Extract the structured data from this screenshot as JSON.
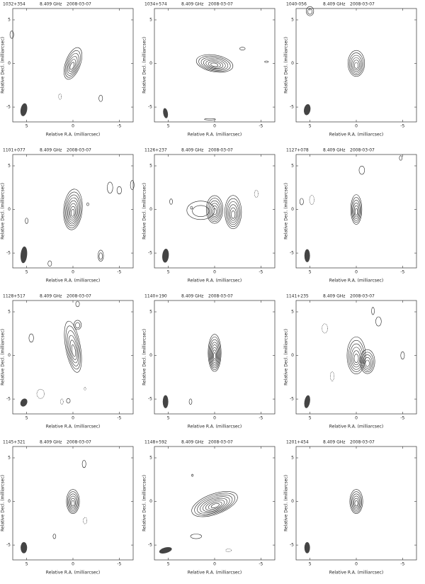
{
  "chart_data": [
    {
      "type": "contour",
      "title": "1032+354",
      "frequency": "8.409 GHz",
      "date": "2008-03-07",
      "x_label": "Relative R.A. (milliarcsec)",
      "y_label": "Relative Decl. (milliarcsec)",
      "xlim": [
        6.5,
        -6.5
      ],
      "ylim": [
        -6.7,
        6.3
      ],
      "xticks": [
        5,
        0,
        -5
      ],
      "yticks": [
        5,
        0,
        -5
      ]
    },
    {
      "type": "contour",
      "title": "1034+574",
      "frequency": "8.409 GHz",
      "date": "2008-03-07",
      "x_label": "Relative R.A. (milliarcsec)",
      "y_label": "Relative Decl. (milliarcsec)",
      "xlim": [
        6.5,
        -6.5
      ],
      "ylim": [
        -6.7,
        6.3
      ],
      "xticks": [
        5,
        0,
        -5
      ],
      "yticks": [
        5,
        0,
        -5
      ]
    },
    {
      "type": "contour",
      "title": "1040-056",
      "frequency": "8.409 GHz",
      "date": "2008-03-07",
      "x_label": "Relative R.A. (milliarcsec)",
      "y_label": "Relative Decl. (milliarcsec)",
      "xlim": [
        6.5,
        -6.5
      ],
      "ylim": [
        -6.7,
        6.3
      ],
      "xticks": [
        5,
        0,
        -5
      ],
      "yticks": [
        5,
        0,
        -5
      ]
    },
    {
      "type": "contour",
      "title": "1101+077",
      "frequency": "8.409 GHz",
      "date": "2008-03-07",
      "x_label": "Relative R.A. (milliarcsec)",
      "y_label": "Relative Decl. (milliarcsec)",
      "xlim": [
        6.5,
        -6.5
      ],
      "ylim": [
        -6.7,
        6.3
      ],
      "xticks": [
        5,
        0,
        -5
      ],
      "yticks": [
        5,
        0,
        -5
      ]
    },
    {
      "type": "contour",
      "title": "1126+237",
      "frequency": "8.409 GHz",
      "date": "2008-03-07",
      "x_label": "Relative R.A. (milliarcsec)",
      "y_label": "Relative Decl. (milliarcsec)",
      "xlim": [
        6.5,
        -6.5
      ],
      "ylim": [
        -6.7,
        6.3
      ],
      "xticks": [
        5,
        0,
        -5
      ],
      "yticks": [
        5,
        0,
        -5
      ]
    },
    {
      "type": "contour",
      "title": "1127+078",
      "frequency": "8.409 GHz",
      "date": "2008-03-07",
      "x_label": "Relative R.A. (milliarcsec)",
      "y_label": "Relative Decl. (milliarcsec)",
      "xlim": [
        6.5,
        -6.5
      ],
      "ylim": [
        -6.7,
        6.3
      ],
      "xticks": [
        5,
        0,
        -5
      ],
      "yticks": [
        5,
        0,
        -5
      ]
    },
    {
      "type": "contour",
      "title": "1128+517",
      "frequency": "8.409 GHz",
      "date": "2008-03-07",
      "x_label": "Relative R.A. (milliarcsec)",
      "y_label": "Relative Decl. (milliarcsec)",
      "xlim": [
        6.5,
        -6.5
      ],
      "ylim": [
        -6.7,
        6.3
      ],
      "xticks": [
        5,
        0,
        -5
      ],
      "yticks": [
        5,
        0,
        -5
      ]
    },
    {
      "type": "contour",
      "title": "1140+190",
      "frequency": "8.409 GHz",
      "date": "2008-03-07",
      "x_label": "Relative R.A. (milliarcsec)",
      "y_label": "Relative Decl. (milliarcsec)",
      "xlim": [
        6.5,
        -6.5
      ],
      "ylim": [
        -6.7,
        6.3
      ],
      "xticks": [
        5,
        0,
        -5
      ],
      "yticks": [
        5,
        0,
        -5
      ]
    },
    {
      "type": "contour",
      "title": "1141+235",
      "frequency": "8.409 GHz",
      "date": "2008-03-07",
      "x_label": "Relative R.A. (milliarcsec)",
      "y_label": "Relative Decl. (milliarcsec)",
      "xlim": [
        6.5,
        -6.5
      ],
      "ylim": [
        -6.7,
        6.3
      ],
      "xticks": [
        5,
        0,
        -5
      ],
      "yticks": [
        5,
        0,
        -5
      ]
    },
    {
      "type": "contour",
      "title": "1145+321",
      "frequency": "8.409 GHz",
      "date": "2008-03-07",
      "x_label": "Relative R.A. (milliarcsec)",
      "y_label": "Relative Decl. (milliarcsec)",
      "xlim": [
        6.5,
        -6.5
      ],
      "ylim": [
        -6.7,
        6.3
      ],
      "xticks": [
        5,
        0,
        -5
      ],
      "yticks": [
        5,
        0,
        -5
      ]
    },
    {
      "type": "contour",
      "title": "1148+592",
      "frequency": "8.409 GHz",
      "date": "2008-03-07",
      "x_label": "Relative R.A. (milliarcsec)",
      "y_label": "Relative Decl. (milliarcsec)",
      "xlim": [
        6.5,
        -6.5
      ],
      "ylim": [
        -6.7,
        6.3
      ],
      "xticks": [
        5,
        0,
        -5
      ],
      "yticks": [
        5,
        0,
        -5
      ]
    },
    {
      "type": "contour",
      "title": "1201+454",
      "frequency": "8.409 GHz",
      "date": "2008-03-07",
      "x_label": "Relative R.A. (milliarcsec)",
      "y_label": "Relative Decl. (milliarcsec)",
      "xlim": [
        6.5,
        -6.5
      ],
      "ylim": [
        -6.7,
        6.3
      ],
      "xticks": [
        5,
        0,
        -5
      ],
      "yticks": [
        5,
        0,
        -5
      ]
    }
  ]
}
